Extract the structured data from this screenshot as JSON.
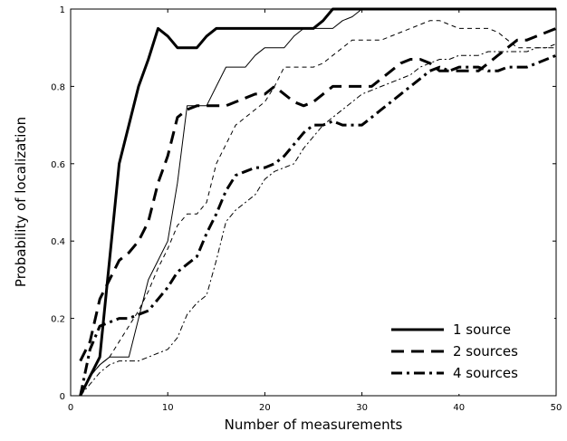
{
  "chart_data": {
    "type": "line",
    "title": "",
    "xlabel": "Number of measurements",
    "ylabel": "Probability of localization",
    "xlim": [
      0,
      50
    ],
    "ylim": [
      0,
      1
    ],
    "xticks": [
      0,
      10,
      20,
      30,
      40,
      50
    ],
    "yticks": [
      0,
      0.2,
      0.4,
      0.6,
      0.8,
      1
    ],
    "xtick_labels": [
      "0",
      "10",
      "20",
      "30",
      "40",
      "50"
    ],
    "ytick_labels": [
      "0",
      "0.2",
      "0.4",
      "0.6",
      "0.8",
      "1"
    ],
    "grid": false,
    "legend_position": "bottom-right",
    "legend": [
      {
        "label": "1 source",
        "dash": "solid"
      },
      {
        "label": "2 sources",
        "dash": "dashed"
      },
      {
        "label": "4 sources",
        "dash": "dashdot"
      }
    ],
    "series": [
      {
        "style": "solid",
        "weight": "thick",
        "x": [
          1,
          2,
          3,
          4,
          5,
          6,
          7,
          8,
          9,
          10,
          11,
          12,
          13,
          14,
          15,
          16,
          17,
          18,
          19,
          20,
          21,
          22,
          23,
          24,
          25,
          26,
          27,
          28,
          29,
          30,
          50
        ],
        "y": [
          0,
          0.05,
          0.1,
          0.35,
          0.6,
          0.7,
          0.8,
          0.87,
          0.95,
          0.93,
          0.9,
          0.9,
          0.9,
          0.93,
          0.95,
          0.95,
          0.95,
          0.95,
          0.95,
          0.95,
          0.95,
          0.95,
          0.95,
          0.95,
          0.95,
          0.97,
          1,
          1,
          1,
          1,
          1
        ]
      },
      {
        "style": "dashed",
        "weight": "thick",
        "x": [
          1,
          2,
          3,
          4,
          5,
          6,
          7,
          8,
          9,
          10,
          11,
          12,
          13,
          14,
          15,
          16,
          17,
          18,
          19,
          20,
          21,
          22,
          23,
          24,
          25,
          26,
          27,
          28,
          29,
          30,
          31,
          32,
          33,
          34,
          35,
          36,
          37,
          38,
          39,
          40,
          41,
          42,
          43,
          44,
          45,
          46,
          47,
          48,
          49,
          50
        ],
        "y": [
          0.09,
          0.14,
          0.25,
          0.3,
          0.35,
          0.37,
          0.4,
          0.45,
          0.55,
          0.62,
          0.72,
          0.74,
          0.75,
          0.75,
          0.75,
          0.75,
          0.76,
          0.77,
          0.78,
          0.78,
          0.8,
          0.78,
          0.76,
          0.75,
          0.76,
          0.78,
          0.8,
          0.8,
          0.8,
          0.8,
          0.8,
          0.82,
          0.84,
          0.86,
          0.87,
          0.87,
          0.86,
          0.84,
          0.84,
          0.84,
          0.84,
          0.84,
          0.86,
          0.88,
          0.9,
          0.92,
          0.92,
          0.93,
          0.94,
          0.95
        ]
      },
      {
        "style": "dashdot",
        "weight": "thick",
        "x": [
          1,
          2,
          3,
          4,
          5,
          6,
          7,
          8,
          9,
          10,
          11,
          12,
          13,
          14,
          15,
          16,
          17,
          18,
          19,
          20,
          21,
          22,
          23,
          24,
          25,
          26,
          27,
          28,
          29,
          30,
          31,
          32,
          33,
          34,
          35,
          36,
          37,
          38,
          39,
          40,
          41,
          42,
          43,
          44,
          45,
          46,
          47,
          48,
          49,
          50
        ],
        "y": [
          0,
          0.12,
          0.18,
          0.19,
          0.2,
          0.2,
          0.21,
          0.22,
          0.25,
          0.28,
          0.32,
          0.34,
          0.36,
          0.42,
          0.47,
          0.53,
          0.57,
          0.58,
          0.59,
          0.59,
          0.6,
          0.62,
          0.65,
          0.68,
          0.7,
          0.7,
          0.71,
          0.7,
          0.7,
          0.7,
          0.72,
          0.74,
          0.76,
          0.78,
          0.8,
          0.82,
          0.84,
          0.85,
          0.84,
          0.85,
          0.85,
          0.85,
          0.84,
          0.84,
          0.85,
          0.85,
          0.85,
          0.86,
          0.87,
          0.88
        ]
      },
      {
        "style": "solid",
        "weight": "thin",
        "x": [
          1,
          2,
          3,
          4,
          5,
          6,
          7,
          8,
          9,
          10,
          11,
          12,
          13,
          14,
          15,
          16,
          17,
          18,
          19,
          20,
          21,
          22,
          23,
          24,
          25,
          26,
          27,
          28,
          29,
          30,
          31,
          50
        ],
        "y": [
          0,
          0.05,
          0.08,
          0.1,
          0.1,
          0.1,
          0.2,
          0.3,
          0.35,
          0.4,
          0.55,
          0.75,
          0.75,
          0.75,
          0.8,
          0.85,
          0.85,
          0.85,
          0.88,
          0.9,
          0.9,
          0.9,
          0.93,
          0.95,
          0.95,
          0.95,
          0.95,
          0.97,
          0.98,
          1,
          1,
          1
        ]
      },
      {
        "style": "dashed",
        "weight": "thin",
        "x": [
          1,
          2,
          3,
          4,
          5,
          6,
          7,
          8,
          9,
          10,
          11,
          12,
          13,
          14,
          15,
          16,
          17,
          18,
          19,
          20,
          21,
          22,
          23,
          24,
          25,
          26,
          27,
          28,
          29,
          30,
          31,
          32,
          33,
          34,
          35,
          36,
          37,
          38,
          39,
          40,
          41,
          42,
          43,
          44,
          45,
          46,
          47,
          48,
          49,
          50
        ],
        "y": [
          0,
          0.05,
          0.08,
          0.1,
          0.14,
          0.18,
          0.22,
          0.27,
          0.33,
          0.38,
          0.44,
          0.47,
          0.47,
          0.5,
          0.6,
          0.65,
          0.7,
          0.72,
          0.74,
          0.76,
          0.8,
          0.85,
          0.85,
          0.85,
          0.85,
          0.86,
          0.88,
          0.9,
          0.92,
          0.92,
          0.92,
          0.92,
          0.93,
          0.94,
          0.95,
          0.96,
          0.97,
          0.97,
          0.96,
          0.95,
          0.95,
          0.95,
          0.95,
          0.94,
          0.92,
          0.9,
          0.9,
          0.9,
          0.9,
          0.91
        ]
      },
      {
        "style": "dashdot",
        "weight": "thin",
        "x": [
          1,
          2,
          3,
          4,
          5,
          6,
          7,
          8,
          9,
          10,
          11,
          12,
          13,
          14,
          15,
          16,
          17,
          18,
          19,
          20,
          21,
          22,
          23,
          24,
          25,
          26,
          27,
          28,
          29,
          30,
          31,
          32,
          33,
          34,
          35,
          36,
          37,
          38,
          39,
          40,
          41,
          42,
          43,
          44,
          45,
          46,
          47,
          48,
          49,
          50
        ],
        "y": [
          0,
          0.03,
          0.06,
          0.08,
          0.09,
          0.09,
          0.09,
          0.1,
          0.11,
          0.12,
          0.15,
          0.21,
          0.24,
          0.26,
          0.35,
          0.45,
          0.48,
          0.5,
          0.52,
          0.56,
          0.58,
          0.59,
          0.6,
          0.64,
          0.67,
          0.7,
          0.72,
          0.74,
          0.76,
          0.78,
          0.79,
          0.8,
          0.81,
          0.82,
          0.83,
          0.85,
          0.86,
          0.87,
          0.87,
          0.88,
          0.88,
          0.88,
          0.89,
          0.89,
          0.89,
          0.89,
          0.89,
          0.9,
          0.9,
          0.9
        ]
      }
    ]
  }
}
